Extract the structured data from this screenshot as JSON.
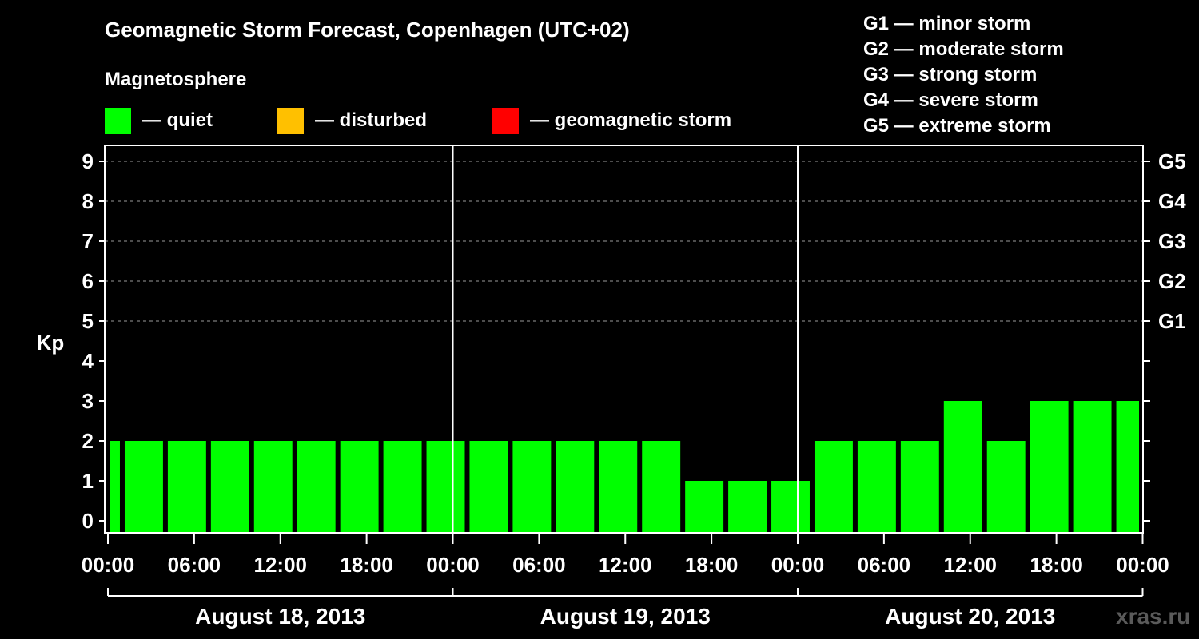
{
  "header": {
    "title": "Geomagnetic Storm Forecast, Copenhagen (UTC+02)",
    "subtitle": "Magnetosphere"
  },
  "legend": [
    {
      "label": "— quiet",
      "color": "#00ff00"
    },
    {
      "label": "— disturbed",
      "color": "#ffc000"
    },
    {
      "label": "— geomagnetic storm",
      "color": "#ff0000"
    }
  ],
  "storm_scale": [
    "G1 — minor storm",
    "G2 — moderate storm",
    "G3 — strong storm",
    "G4 — severe storm",
    "G5 — extreme storm"
  ],
  "watermark": "xras.ru",
  "chart_data": {
    "type": "bar",
    "ylabel": "Kp",
    "ylim": [
      0,
      9
    ],
    "yticks": [
      "0",
      "1",
      "2",
      "3",
      "4",
      "5",
      "6",
      "7",
      "8",
      "9"
    ],
    "right_ticks": [
      {
        "kp": 5,
        "label": "G1"
      },
      {
        "kp": 6,
        "label": "G2"
      },
      {
        "kp": 7,
        "label": "G3"
      },
      {
        "kp": 8,
        "label": "G4"
      },
      {
        "kp": 9,
        "label": "G5"
      }
    ],
    "grid": "dashed horizontal",
    "xticks": [
      "00:00",
      "06:00",
      "12:00",
      "18:00",
      "00:00",
      "06:00",
      "12:00",
      "18:00",
      "00:00",
      "06:00",
      "12:00",
      "18:00",
      "00:00"
    ],
    "days": [
      "August 18, 2013",
      "August 19, 2013",
      "August 20, 2013"
    ],
    "x_hours_start": -2,
    "interval_hours": 3,
    "values": [
      2,
      2,
      2,
      2,
      2,
      2,
      2,
      2,
      2,
      2,
      2,
      2,
      2,
      2,
      1,
      1,
      1,
      2,
      2,
      2,
      3,
      2,
      3,
      3,
      3
    ],
    "bar_color": "#00ff00"
  }
}
